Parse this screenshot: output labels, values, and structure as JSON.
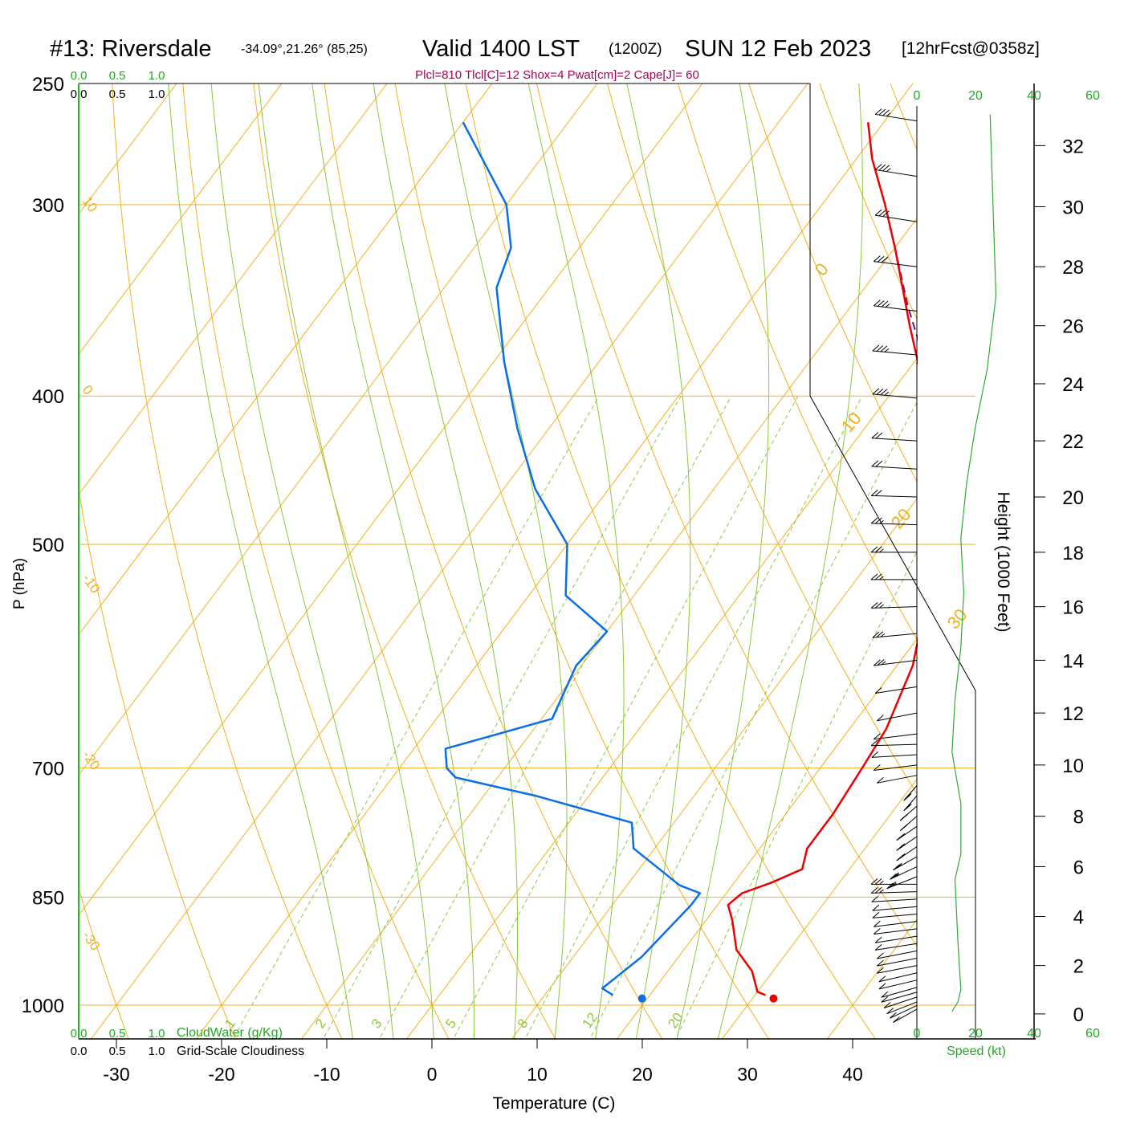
{
  "header": {
    "station": "#13: Riversdale",
    "coords": "-34.09°,21.26° (85,25)",
    "valid": "Valid 1400 LST",
    "utc": "(1200Z)",
    "date": "SUN 12 Feb 2023",
    "fcst": "[12hrFcst@0358z]",
    "indices": "Plcl=810 Tlcl[C]=12 Shox=4 Pwat[cm]=2 Cape[J]= 60"
  },
  "labels": {
    "y_axis": "P (hPa)",
    "x_axis": "Temperature (C)",
    "height_axis": "Height (1000 Feet)",
    "cloudwater": "CloudWater (g/Kg)",
    "cloudiness": "Grid-Scale Cloudiness",
    "speed": "Speed (kt)",
    "scale_0": "0.0",
    "scale_1": "0.5",
    "scale_2": "1.0"
  },
  "colors": {
    "temperature": "#ee0000",
    "dewpoint": "#0a6ee6",
    "parcel": "#7a0f6e",
    "isotherm": "#f2b01e",
    "dry_adiabat": "#f2b01e",
    "moist_adiabat": "#8cc83c",
    "mixing_ratio": "#8cc83c",
    "cloudwater": "#22aa22",
    "wind_speed": "#33aa33",
    "indices": "#aa0055"
  },
  "chart_data": {
    "type": "skew-t",
    "pressure_ticks": [
      250,
      300,
      400,
      500,
      700,
      850,
      1000
    ],
    "temperature_ticks": [
      -30,
      -20,
      -10,
      0,
      10,
      20,
      30,
      40
    ],
    "height_ticks_kft": [
      0,
      2,
      4,
      6,
      8,
      10,
      12,
      14,
      16,
      18,
      20,
      22,
      24,
      26,
      28,
      30,
      32
    ],
    "speed_ticks_kt": [
      0,
      20,
      40,
      60
    ],
    "isotherm_labels": [
      "10",
      "0",
      "-10",
      "-20",
      "-30"
    ],
    "isotherm_labels_right": [
      "0",
      "10",
      "20",
      "30"
    ],
    "mixing_ratio_values": [
      1,
      2,
      3,
      5,
      8,
      12,
      20
    ],
    "mixing_ratio_labels": [
      "1",
      "2",
      "3",
      "5",
      "8",
      "12",
      "20"
    ],
    "dry_adiabats_thetaC": [
      -30,
      -20,
      -10,
      0,
      10,
      20,
      30,
      40,
      50,
      60,
      70,
      80,
      90,
      100,
      110,
      120
    ],
    "moist_adiabats_thetawC": [
      -8,
      -4,
      0,
      4,
      8,
      12,
      16,
      20,
      24,
      28
    ],
    "surface_temperature": 32.0,
    "surface_dewpoint": 19.5,
    "surface_pressure": 990,
    "temperature": [
      [
        985,
        31
      ],
      [
        980,
        30
      ],
      [
        950,
        28
      ],
      [
        920,
        25
      ],
      [
        880,
        22.5
      ],
      [
        860,
        21
      ],
      [
        845,
        21.5
      ],
      [
        832,
        23.5
      ],
      [
        815,
        25.5
      ],
      [
        790,
        24.5
      ],
      [
        750,
        24.5
      ],
      [
        700,
        24
      ],
      [
        660,
        23.5
      ],
      [
        600,
        21.5
      ],
      [
        550,
        18.5
      ],
      [
        500,
        14.5
      ],
      [
        460,
        10.5
      ],
      [
        400,
        3.5
      ],
      [
        360,
        -3
      ],
      [
        320,
        -10
      ],
      [
        300,
        -14
      ],
      [
        280,
        -18.5
      ],
      [
        265,
        -21.5
      ]
    ],
    "dewpoint": [
      [
        985,
        16.5
      ],
      [
        975,
        15
      ],
      [
        930,
        16.5
      ],
      [
        860,
        17.5
      ],
      [
        845,
        17.5
      ],
      [
        835,
        15
      ],
      [
        790,
        8
      ],
      [
        760,
        6
      ],
      [
        730,
        -5
      ],
      [
        710,
        -14
      ],
      [
        700,
        -15.5
      ],
      [
        680,
        -17
      ],
      [
        650,
        -9
      ],
      [
        600,
        -10.5
      ],
      [
        570,
        -10
      ],
      [
        540,
        -16.5
      ],
      [
        500,
        -20
      ],
      [
        460,
        -27
      ],
      [
        420,
        -33
      ],
      [
        380,
        -39
      ],
      [
        340,
        -45
      ],
      [
        320,
        -46.5
      ],
      [
        300,
        -50
      ],
      [
        265,
        -60
      ]
    ],
    "parcel": [
      [
        445,
        10.5
      ],
      [
        420,
        7.5
      ],
      [
        400,
        4.5
      ],
      [
        380,
        1
      ],
      [
        350,
        -4.5
      ],
      [
        320,
        -10
      ],
      [
        310,
        -12
      ]
    ],
    "wind_speed_profile_kt": [
      [
        0.1,
        12
      ],
      [
        0.5,
        14
      ],
      [
        1.0,
        15
      ],
      [
        3.0,
        14
      ],
      [
        5.5,
        13
      ],
      [
        6.5,
        15
      ],
      [
        8.5,
        15
      ],
      [
        10.5,
        12
      ],
      [
        12.5,
        13
      ],
      [
        14.5,
        15
      ],
      [
        16.5,
        16
      ],
      [
        18.5,
        15
      ],
      [
        20.5,
        17
      ],
      [
        22.5,
        20
      ],
      [
        24.5,
        24
      ],
      [
        27,
        27
      ],
      [
        30,
        26
      ],
      [
        33,
        25
      ]
    ],
    "wind_barbs": [
      [
        0.2,
        210,
        10
      ],
      [
        0.35,
        215,
        10
      ],
      [
        0.5,
        220,
        10
      ],
      [
        0.7,
        225,
        10
      ],
      [
        0.9,
        230,
        10
      ],
      [
        1.1,
        230,
        10
      ],
      [
        1.4,
        235,
        10
      ],
      [
        1.7,
        235,
        10
      ],
      [
        2.0,
        240,
        10
      ],
      [
        2.3,
        240,
        10
      ],
      [
        2.6,
        240,
        10
      ],
      [
        2.9,
        245,
        10
      ],
      [
        3.2,
        245,
        10
      ],
      [
        3.5,
        250,
        10
      ],
      [
        3.8,
        250,
        10
      ],
      [
        4.1,
        255,
        10
      ],
      [
        4.4,
        255,
        10
      ],
      [
        4.7,
        260,
        10
      ],
      [
        5.0,
        265,
        15
      ],
      [
        5.3,
        270,
        15
      ],
      [
        5.6,
        220,
        15
      ],
      [
        6.0,
        215,
        15
      ],
      [
        6.4,
        210,
        15
      ],
      [
        6.8,
        205,
        15
      ],
      [
        7.2,
        205,
        15
      ],
      [
        7.6,
        205,
        15
      ],
      [
        8.0,
        200,
        15
      ],
      [
        8.4,
        200,
        15
      ],
      [
        8.8,
        195,
        15
      ],
      [
        9.2,
        195,
        15
      ],
      [
        9.6,
        240,
        10
      ],
      [
        10.0,
        250,
        10
      ],
      [
        10.4,
        260,
        10
      ],
      [
        10.8,
        265,
        10
      ],
      [
        11.2,
        250,
        10
      ],
      [
        12.0,
        240,
        10
      ],
      [
        13.0,
        245,
        10
      ],
      [
        14.0,
        250,
        15
      ],
      [
        15.0,
        255,
        15
      ],
      [
        16.0,
        265,
        15
      ],
      [
        17.0,
        270,
        15
      ],
      [
        18.0,
        270,
        15
      ],
      [
        19.0,
        275,
        15
      ],
      [
        20.0,
        275,
        20
      ],
      [
        21.0,
        280,
        20
      ],
      [
        22.0,
        280,
        20
      ],
      [
        23.5,
        285,
        25
      ],
      [
        25.0,
        285,
        25
      ],
      [
        26.5,
        290,
        25
      ],
      [
        28.0,
        290,
        30
      ],
      [
        29.5,
        295,
        30
      ],
      [
        31.0,
        295,
        25
      ],
      [
        32.8,
        295,
        25
      ]
    ]
  }
}
